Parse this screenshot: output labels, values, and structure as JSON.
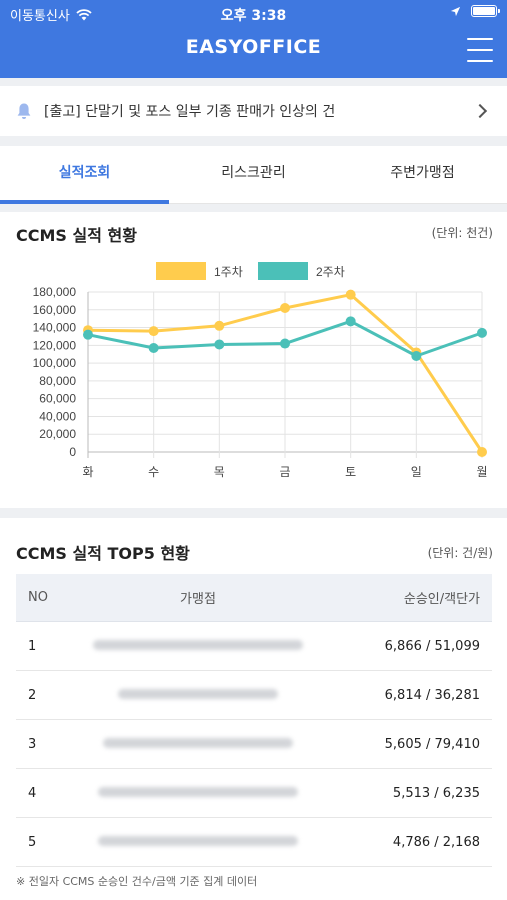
{
  "status": {
    "carrier": "이동통신사",
    "time": "오후 3:38"
  },
  "header": {
    "title": "EASYOFFICE"
  },
  "notice": {
    "text": "[출고] 단말기 및 포스 일부 기종 판매가 인상의 건"
  },
  "tabs": [
    {
      "label": "실적조회"
    },
    {
      "label": "리스크관리"
    },
    {
      "label": "주변가맹점"
    }
  ],
  "chart_card": {
    "title": "CCMS 실적 현황",
    "unit": "(단위: 천건)"
  },
  "chart_data": {
    "type": "line",
    "categories": [
      "화",
      "수",
      "목",
      "금",
      "토",
      "일",
      "월"
    ],
    "series": [
      {
        "name": "1주차",
        "color": "#ffcc4d",
        "values": [
          137000,
          136000,
          142000,
          162000,
          177000,
          112000,
          0
        ]
      },
      {
        "name": "2주차",
        "color": "#4bc0b8",
        "values": [
          132000,
          117000,
          121000,
          122000,
          147000,
          108000,
          134000
        ]
      }
    ],
    "ylim": [
      0,
      180000
    ],
    "yticks": [
      "0",
      "20,000",
      "40,000",
      "60,000",
      "80,000",
      "100,000",
      "120,000",
      "140,000",
      "160,000",
      "180,000"
    ],
    "legend": "top",
    "grid": true
  },
  "top5": {
    "title": "CCMS 실적 TOP5 현황",
    "unit": "(단위: 건/원)",
    "headers": {
      "no": "NO",
      "name": "가맹점",
      "value": "순승인/객단가"
    },
    "rows": [
      {
        "no": "1",
        "value": "6,866 / 51,099"
      },
      {
        "no": "2",
        "value": "6,814 / 36,281"
      },
      {
        "no": "3",
        "value": "5,605 / 79,410"
      },
      {
        "no": "4",
        "value": "5,513 / 6,235"
      },
      {
        "no": "5",
        "value": "4,786 / 2,168"
      }
    ],
    "footnote": "※ 전일자 CCMS 순승인 건수/금액 기준 집계 데이터"
  }
}
